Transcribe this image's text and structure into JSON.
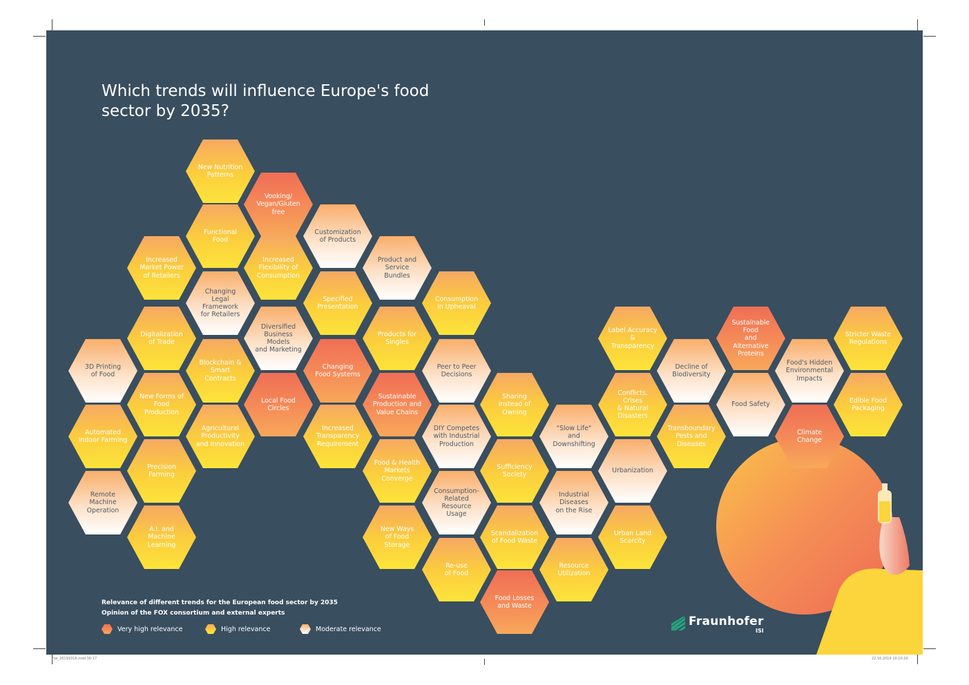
{
  "title": "Which trends will influence Europe's food\nsector by 2035?",
  "colors": {
    "background": "#394e5f",
    "very_high": "#ef6e55",
    "high": "#fbcc3e",
    "moderate": "#fde0c6"
  },
  "trends": [
    {
      "label": "New Nutrition\nPatterns",
      "relevance": "high"
    },
    {
      "label": "Vooking/\nVegan/Gluten free",
      "relevance": "very_high"
    },
    {
      "label": "Functional\nFood",
      "relevance": "high"
    },
    {
      "label": "Customization\nof Products",
      "relevance": "moderate"
    },
    {
      "label": "Increased\nMarket Power\nof Retailers",
      "relevance": "high"
    },
    {
      "label": "Increased\nFlexibility of\nConsumption",
      "relevance": "high"
    },
    {
      "label": "Product and\nService Bundles",
      "relevance": "moderate"
    },
    {
      "label": "Changing\nLegal Framework\nfor Retailers",
      "relevance": "moderate"
    },
    {
      "label": "Specified\nPresentation",
      "relevance": "high"
    },
    {
      "label": "Consumption\nin Upheaval",
      "relevance": "high"
    },
    {
      "label": "Digitalization\nof Trade",
      "relevance": "high"
    },
    {
      "label": "Diversified\nBusiness Models\nand Marketing",
      "relevance": "moderate"
    },
    {
      "label": "Products for\nSingles",
      "relevance": "high"
    },
    {
      "label": "3D Printing\nof Food",
      "relevance": "moderate"
    },
    {
      "label": "Blockchain &\nSmart Contracts",
      "relevance": "high"
    },
    {
      "label": "Changing\nFood Systems",
      "relevance": "very_high"
    },
    {
      "label": "Peer to Peer\nDecisions",
      "relevance": "moderate"
    },
    {
      "label": "New Forms of\nFood Production",
      "relevance": "high"
    },
    {
      "label": "Local Food\nCircles",
      "relevance": "very_high"
    },
    {
      "label": "Sustainable\nProduction and\nValue Chains",
      "relevance": "very_high"
    },
    {
      "label": "Sharing\ninstead of\nOwning",
      "relevance": "high"
    },
    {
      "label": "Automated\nIndoor Farming",
      "relevance": "high"
    },
    {
      "label": "Agricultural\nProductivity\nand Innovation",
      "relevance": "high"
    },
    {
      "label": "Increased\nTransparency\nRequirement",
      "relevance": "high"
    },
    {
      "label": "DIY Competes\nwith Industrial\nProduction",
      "relevance": "moderate"
    },
    {
      "label": "\"Slow Life\"\nand Downshifting",
      "relevance": "moderate"
    },
    {
      "label": "Precision\nFarming",
      "relevance": "high"
    },
    {
      "label": "Food & Health\nMarkets Converge",
      "relevance": "high"
    },
    {
      "label": "Sufficiency\nSociety",
      "relevance": "high"
    },
    {
      "label": "Remote\nMachine Operation",
      "relevance": "moderate"
    },
    {
      "label": "Consumption-\nRelated Resource\nUsage",
      "relevance": "moderate"
    },
    {
      "label": "Industrial\nDiseases\non the Rise",
      "relevance": "moderate"
    },
    {
      "label": "A.I. and\nMachine Learning",
      "relevance": "high"
    },
    {
      "label": "New Ways\nof Food Storage",
      "relevance": "high"
    },
    {
      "label": "Scandalization\nof Food Waste",
      "relevance": "high"
    },
    {
      "label": "Re-use\nof Food",
      "relevance": "high"
    },
    {
      "label": "Resource\nUtilization",
      "relevance": "high"
    },
    {
      "label": "Food Losses\nand Waste",
      "relevance": "very_high"
    },
    {
      "label": "Label Accuracy\n& Transparency",
      "relevance": "high"
    },
    {
      "label": "Decline of\nBiodiversity",
      "relevance": "moderate"
    },
    {
      "label": "Sustainable Food\nand Alternative\nProteins",
      "relevance": "very_high"
    },
    {
      "label": "Stricter Waste\nRegulations",
      "relevance": "high"
    },
    {
      "label": "Food's Hidden\nEnvironmental\nImpacts",
      "relevance": "moderate"
    },
    {
      "label": "Conflicts, Crises\n& Natural Disasters",
      "relevance": "high"
    },
    {
      "label": "Food Safety",
      "relevance": "moderate"
    },
    {
      "label": "Edible Food\nPackaging",
      "relevance": "high"
    },
    {
      "label": "Transboundary\nPests and Diseases",
      "relevance": "high"
    },
    {
      "label": "Climate\nChange",
      "relevance": "very_high"
    },
    {
      "label": "Urbanization",
      "relevance": "moderate"
    },
    {
      "label": "Urban Land\nScarcity",
      "relevance": "high"
    }
  ],
  "legend": {
    "title_line1": "Relevance of different trends for the European food sector by 2035",
    "title_line2": "Opinion of the FOX consortium and external experts",
    "very_high": "Very high relevance",
    "high": "High relevance",
    "moderate": "Moderate relevance"
  },
  "logo": {
    "name": "Fraunhofer",
    "sub": "ISI"
  },
  "footer": {
    "left": "Fox_20191016.indd   16-17",
    "right": "22.10.2019   10:10:20"
  }
}
